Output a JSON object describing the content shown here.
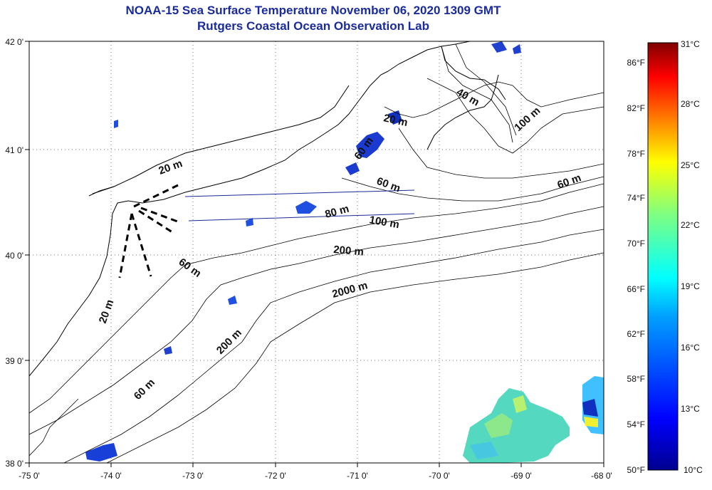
{
  "title": {
    "line1": "NOAA-15 Sea Surface Temperature November 06, 2020 1309 GMT",
    "line2": "Rutgers Coastal Ocean Observation Lab"
  },
  "map": {
    "lon_labels": [
      "-75 0'",
      "-74 0'",
      "-73 0'",
      "-72 0'",
      "-71 0'",
      "-70 0'",
      "-69 0'",
      "-68 0'"
    ],
    "lat_labels": [
      "42 0'",
      "41 0'",
      "40 0'",
      "39 0'",
      "38 0'"
    ],
    "lon_range": [
      -75,
      -68
    ],
    "lat_range": [
      38,
      42
    ],
    "grid": "dotted",
    "contour_labels": [
      "40 m",
      "100 m",
      "20 m",
      "60 m",
      "60 m",
      "60 m",
      "80 m",
      "100 m",
      "200 m",
      "60 m",
      "2000 m",
      "20 m",
      "200 m",
      "60 m",
      "20 m"
    ]
  },
  "colorbar": {
    "f_labels": [
      "86°F",
      "82°F",
      "78°F",
      "74°F",
      "70°F",
      "66°F",
      "62°F",
      "58°F",
      "54°F",
      "50°F"
    ],
    "c_labels": [
      "31°C",
      "28°C",
      "25°C",
      "22°C",
      "19°C",
      "16°C",
      "13°C",
      "10°C"
    ],
    "range_c": [
      10,
      31
    ],
    "colors": [
      "#00008f",
      "#0000ff",
      "#0080ff",
      "#00ffff",
      "#80ff80",
      "#ffff00",
      "#ff8000",
      "#ff0000",
      "#800000"
    ]
  }
}
